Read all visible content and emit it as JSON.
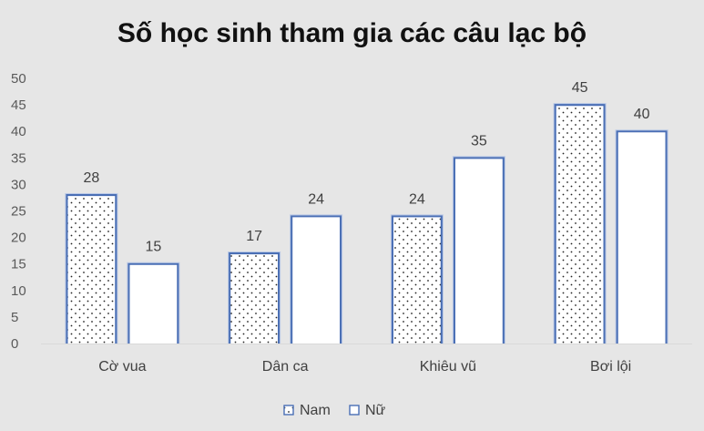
{
  "chart_data": {
    "type": "bar",
    "title": "Số học sinh tham gia các câu lạc bộ",
    "categories": [
      "Cờ vua",
      "Dân ca",
      "Khiêu vũ",
      "Bơi lội"
    ],
    "series": [
      {
        "name": "Nam",
        "values": [
          28,
          17,
          24,
          45
        ],
        "pattern": "dotted",
        "fill": "#ffffff",
        "stroke": "#4472c4"
      },
      {
        "name": "Nữ",
        "values": [
          15,
          24,
          35,
          40
        ],
        "pattern": "none",
        "fill": "#ffffff",
        "stroke": "#4472c4"
      }
    ],
    "y_ticks": [
      "0",
      "5",
      "10",
      "15",
      "20",
      "25",
      "30",
      "35",
      "40",
      "45",
      "50"
    ],
    "ylim": [
      0,
      50
    ],
    "grid": false,
    "legend_position": "bottom",
    "data_labels": true
  }
}
